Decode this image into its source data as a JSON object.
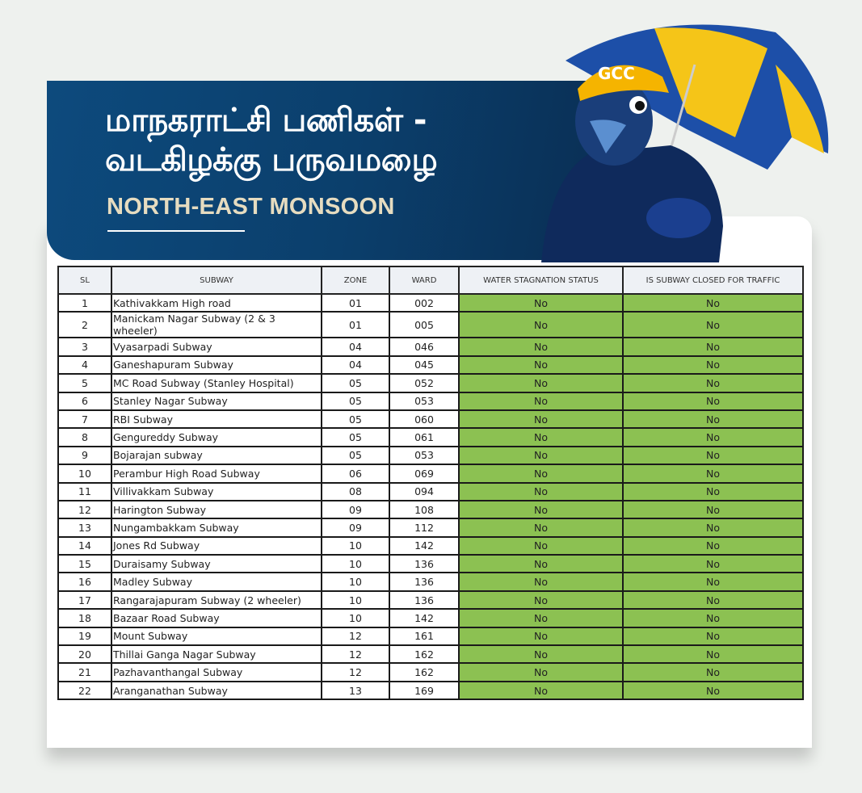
{
  "header": {
    "title_line1": "மாநகராட்சி பணிகள் -",
    "title_line2": "வடகிழக்கு பருவமழை",
    "subtitle": "NORTH-EAST MONSOON",
    "mascot_cap_text": "GCC"
  },
  "colors": {
    "banner": "#0b3f6c",
    "status_green": "#8cc152",
    "subtitle": "#e6dcc0"
  },
  "table": {
    "headers": [
      "SL",
      "SUBWAY",
      "ZONE",
      "WARD",
      "WATER STAGNATION STATUS",
      "IS SUBWAY CLOSED FOR TRAFFIC"
    ],
    "rows": [
      [
        "1",
        "Kathivakkam High road",
        "01",
        "002",
        "No",
        "No"
      ],
      [
        "2",
        "Manickam Nagar Subway (2 & 3 wheeler)",
        "01",
        "005",
        "No",
        "No"
      ],
      [
        "3",
        "Vyasarpadi Subway",
        "04",
        "046",
        "No",
        "No"
      ],
      [
        "4",
        "Ganeshapuram Subway",
        "04",
        "045",
        "No",
        "No"
      ],
      [
        "5",
        "MC Road Subway (Stanley Hospital)",
        "05",
        "052",
        "No",
        "No"
      ],
      [
        "6",
        "Stanley Nagar Subway",
        "05",
        "053",
        "No",
        "No"
      ],
      [
        "7",
        "RBI Subway",
        "05",
        "060",
        "No",
        "No"
      ],
      [
        "8",
        "Gengureddy Subway",
        "05",
        "061",
        "No",
        "No"
      ],
      [
        "9",
        "Bojarajan subway",
        "05",
        "053",
        "No",
        "No"
      ],
      [
        "10",
        "Perambur High Road Subway",
        "06",
        "069",
        "No",
        "No"
      ],
      [
        "11",
        "Villivakkam Subway",
        "08",
        "094",
        "No",
        "No"
      ],
      [
        "12",
        "Harington Subway",
        "09",
        "108",
        "No",
        "No"
      ],
      [
        "13",
        "Nungambakkam Subway",
        "09",
        "112",
        "No",
        "No"
      ],
      [
        "14",
        "Jones Rd Subway",
        "10",
        "142",
        "No",
        "No"
      ],
      [
        "15",
        "Duraisamy Subway",
        "10",
        "136",
        "No",
        "No"
      ],
      [
        "16",
        "Madley Subway",
        "10",
        "136",
        "No",
        "No"
      ],
      [
        "17",
        "Rangarajapuram Subway (2 wheeler)",
        "10",
        "136",
        "No",
        "No"
      ],
      [
        "18",
        "Bazaar Road Subway",
        "10",
        "142",
        "No",
        "No"
      ],
      [
        "19",
        "Mount Subway",
        "12",
        "161",
        "No",
        "No"
      ],
      [
        "20",
        "Thillai Ganga Nagar Subway",
        "12",
        "162",
        "No",
        "No"
      ],
      [
        "21",
        "Pazhavanthangal Subway",
        "12",
        "162",
        "No",
        "No"
      ],
      [
        "22",
        "Aranganathan Subway",
        "13",
        "169",
        "No",
        "No"
      ]
    ]
  }
}
